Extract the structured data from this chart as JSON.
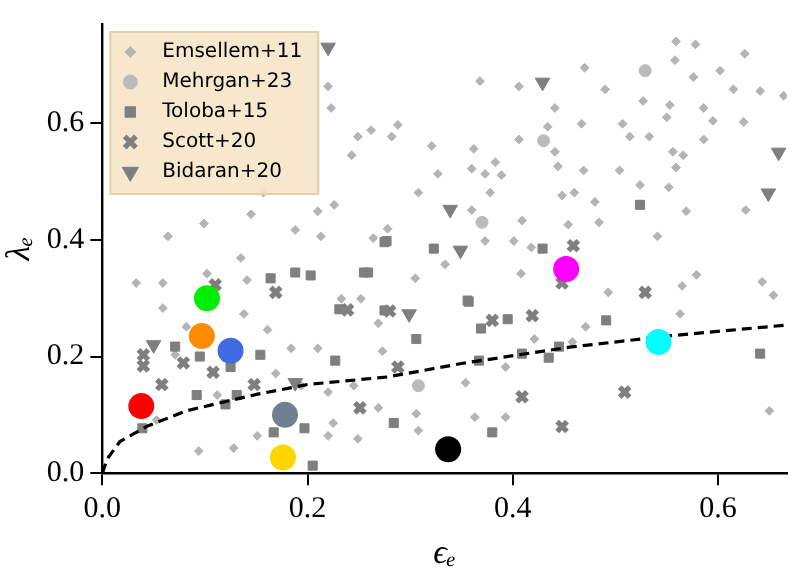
{
  "chart_data": {
    "type": "scatter",
    "xlabel": "ϵₑ",
    "ylabel": "λₑ",
    "xlim": [
      0,
      0.667
    ],
    "ylim": [
      0,
      0.77
    ],
    "xticks": [
      {
        "value": 0,
        "label": "0.0"
      },
      {
        "value": 0.2,
        "label": "0.2"
      },
      {
        "value": 0.4,
        "label": "0.4"
      },
      {
        "value": 0.6,
        "label": "0.6"
      }
    ],
    "yticks": [
      {
        "value": 0,
        "label": "0.0"
      },
      {
        "value": 0.2,
        "label": "0.2"
      },
      {
        "value": 0.4,
        "label": "0.4"
      },
      {
        "value": 0.6,
        "label": "0.6"
      }
    ],
    "grid": false,
    "legend": "top left",
    "series": [
      {
        "name": "Emsellem+11",
        "marker": "diamond",
        "color": "#b4b4b4",
        "x": [
          0.22,
          0.223,
          0.243,
          0.226,
          0.21,
          0.157,
          0.145,
          0.099,
          0.064,
          0.188,
          0.213,
          0.135,
          0.102,
          0.059,
          0.033,
          0.141,
          0.233,
          0.252,
          0.249,
          0.262,
          0.368,
          0.406,
          0.47,
          0.559,
          0.578,
          0.626,
          0.558,
          0.602,
          0.576,
          0.615,
          0.641,
          0.664,
          0.49,
          0.527,
          0.553,
          0.586,
          0.441,
          0.467,
          0.507,
          0.55,
          0.595,
          0.625,
          0.434,
          0.514,
          0.533,
          0.586,
          0.288,
          0.282,
          0.321,
          0.362,
          0.406,
          0.441,
          0.556,
          0.566,
          0.383,
          0.389,
          0.373,
          0.36,
          0.327,
          0.444,
          0.469,
          0.504,
          0.559,
          0.524,
          0.308,
          0.378,
          0.448,
          0.46,
          0.48,
          0.552,
          0.569,
          0.627,
          0.36,
          0.409,
          0.484,
          0.454,
          0.373,
          0.401,
          0.278,
          0.264,
          0.541,
          0.418,
          0.408,
          0.305,
          0.334,
          0.579,
          0.643,
          0.493,
          0.565,
          0.059,
          0.082,
          0.138,
          0.161,
          0.184,
          0.21,
          0.169,
          0.194,
          0.22,
          0.245,
          0.225,
          0.22,
          0.128,
          0.094,
          0.151,
          0.269,
          0.249,
          0.071,
          0.112,
          0.053,
          0.269,
          0.273,
          0.306,
          0.308,
          0.363,
          0.393,
          0.354,
          0.393,
          0.421,
          0.471,
          0.458,
          0.563,
          0.65,
          0.654
        ],
        "values": [
          0.663,
          0.626,
          0.545,
          0.46,
          0.449,
          0.481,
          0.444,
          0.428,
          0.406,
          0.417,
          0.406,
          0.369,
          0.342,
          0.326,
          0.326,
          0.331,
          0.299,
          0.299,
          0.577,
          0.588,
          0.672,
          0.663,
          0.695,
          0.74,
          0.735,
          0.719,
          0.708,
          0.69,
          0.679,
          0.658,
          0.655,
          0.647,
          0.658,
          0.638,
          0.631,
          0.626,
          0.626,
          0.599,
          0.599,
          0.61,
          0.604,
          0.602,
          0.594,
          0.577,
          0.577,
          0.572,
          0.597,
          0.577,
          0.561,
          0.556,
          0.572,
          0.551,
          0.551,
          0.545,
          0.533,
          0.511,
          0.513,
          0.522,
          0.513,
          0.526,
          0.519,
          0.519,
          0.524,
          0.494,
          0.481,
          0.481,
          0.476,
          0.481,
          0.465,
          0.49,
          0.449,
          0.451,
          0.451,
          0.433,
          0.43,
          0.426,
          0.398,
          0.398,
          0.419,
          0.403,
          0.406,
          0.387,
          0.342,
          0.334,
          0.358,
          0.34,
          0.328,
          0.31,
          0.321,
          0.283,
          0.251,
          0.273,
          0.246,
          0.214,
          0.214,
          0.171,
          0.15,
          0.139,
          0.15,
          0.086,
          0.064,
          0.043,
          0.038,
          0.064,
          0.112,
          0.059,
          0.203,
          0.134,
          0.091,
          0.257,
          0.209,
          0.102,
          0.073,
          0.096,
          0.096,
          0.155,
          0.182,
          0.23,
          0.251,
          0.225,
          0.273,
          0.107,
          0.305
        ]
      },
      {
        "name": "Mehrgan+23",
        "marker": "circle",
        "color": "#bbbbbb",
        "x": [
          0.529,
          0.43,
          0.37,
          0.308
        ],
        "values": [
          0.69,
          0.57,
          0.43,
          0.15
        ]
      },
      {
        "name": "Toloba+15",
        "marker": "square",
        "color": "#7f7f7f",
        "x": [
          0.277,
          0.323,
          0.429,
          0.524,
          0.356,
          0.259,
          0.164,
          0.188,
          0.203,
          0.255,
          0.275,
          0.071,
          0.095,
          0.125,
          0.154,
          0.092,
          0.12,
          0.131,
          0.039,
          0.167,
          0.197,
          0.205,
          0.227,
          0.231,
          0.357,
          0.369,
          0.395,
          0.306,
          0.367,
          0.409,
          0.435,
          0.445,
          0.491,
          0.284,
          0.38,
          0.641,
          0.275
        ],
        "values": [
          0.398,
          0.385,
          0.385,
          0.46,
          0.296,
          0.344,
          0.334,
          0.344,
          0.339,
          0.344,
          0.396,
          0.217,
          0.2,
          0.182,
          0.203,
          0.134,
          0.118,
          0.134,
          0.077,
          0.07,
          0.077,
          0.013,
          0.193,
          0.281,
          0.294,
          0.248,
          0.264,
          0.23,
          0.193,
          0.205,
          0.198,
          0.217,
          0.262,
          0.086,
          0.07,
          0.205,
          0.279
        ]
      },
      {
        "name": "Scott+20",
        "marker": "cross",
        "color": "#7f7f7f",
        "x": [
          0.169,
          0.11,
          0.459,
          0.529,
          0.448,
          0.04,
          0.04,
          0.058,
          0.079,
          0.108,
          0.148,
          0.239,
          0.251,
          0.28,
          0.38,
          0.419,
          0.288,
          0.409,
          0.509,
          0.448
        ],
        "values": [
          0.31,
          0.323,
          0.39,
          0.31,
          0.326,
          0.203,
          0.184,
          0.152,
          0.189,
          0.173,
          0.152,
          0.28,
          0.112,
          0.278,
          0.262,
          0.27,
          0.182,
          0.131,
          0.139,
          0.08
        ]
      },
      {
        "name": "Bidaran+20",
        "marker": "triangle",
        "color": "#7f7f7f",
        "x": [
          0.22,
          0.429,
          0.339,
          0.349,
          0.659,
          0.649,
          0.05,
          0.188,
          0.299
        ],
        "values": [
          0.73,
          0.67,
          0.452,
          0.382,
          0.55,
          0.48,
          0.22,
          0.155,
          0.273
        ]
      },
      {
        "type": "line",
        "color": "#000000",
        "line_style": "dashed",
        "marker": "none",
        "x": [
          0,
          0.005,
          0.017,
          0.043,
          0.082,
          0.15,
          0.2,
          0.278,
          0.35,
          0.455,
          0.55,
          0.667
        ],
        "values": [
          0,
          0.025,
          0.054,
          0.08,
          0.107,
          0.135,
          0.152,
          0.165,
          0.188,
          0.216,
          0.235,
          0.254
        ]
      },
      {
        "marker": "circle",
        "colors": [
          "#ff0000",
          "#00ee00",
          "#ff8c00",
          "#4169e1",
          "#708090",
          "#ffd700",
          "#000000",
          "#00ffff",
          "#ff00ff"
        ],
        "x": [
          0.038,
          0.102,
          0.097,
          0.125,
          0.178,
          0.176,
          0.337,
          0.542,
          0.452
        ],
        "values": [
          0.115,
          0.3,
          0.235,
          0.21,
          0.1,
          0.027,
          0.041,
          0.225,
          0.35
        ]
      }
    ]
  }
}
